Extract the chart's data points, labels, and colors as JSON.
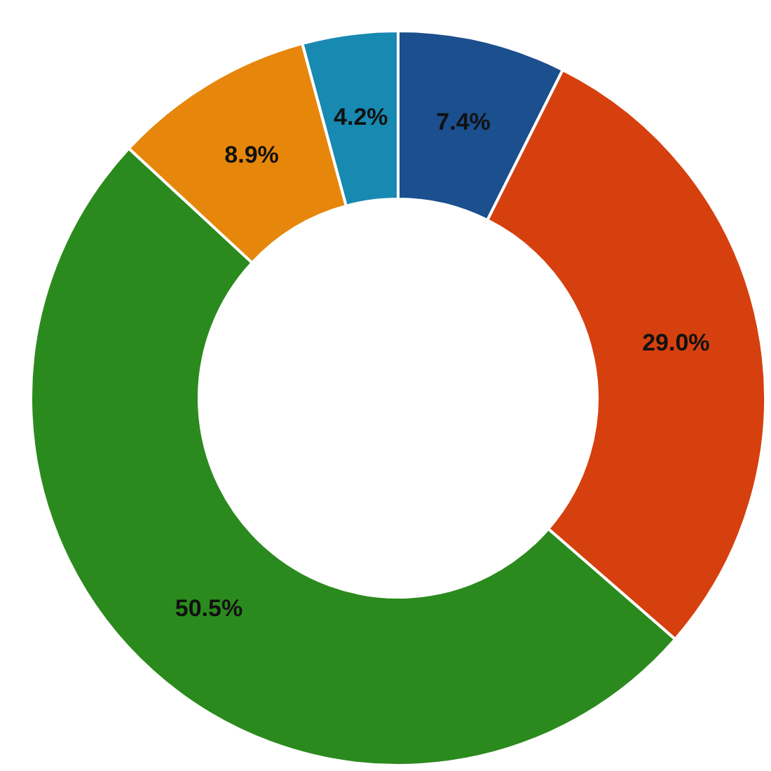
{
  "chart_data": {
    "type": "donut",
    "categories": [
      null,
      null,
      null,
      null,
      null
    ],
    "values": [
      7.4,
      29.0,
      50.5,
      8.9,
      4.2
    ],
    "value_labels": [
      "7.4%",
      "29.0%",
      "50.5%",
      "8.9%",
      "4.2%"
    ],
    "colors": [
      "#1b4f8e",
      "#d6400e",
      "#2b8a1d",
      "#e6870b",
      "#1889b0"
    ]
  }
}
